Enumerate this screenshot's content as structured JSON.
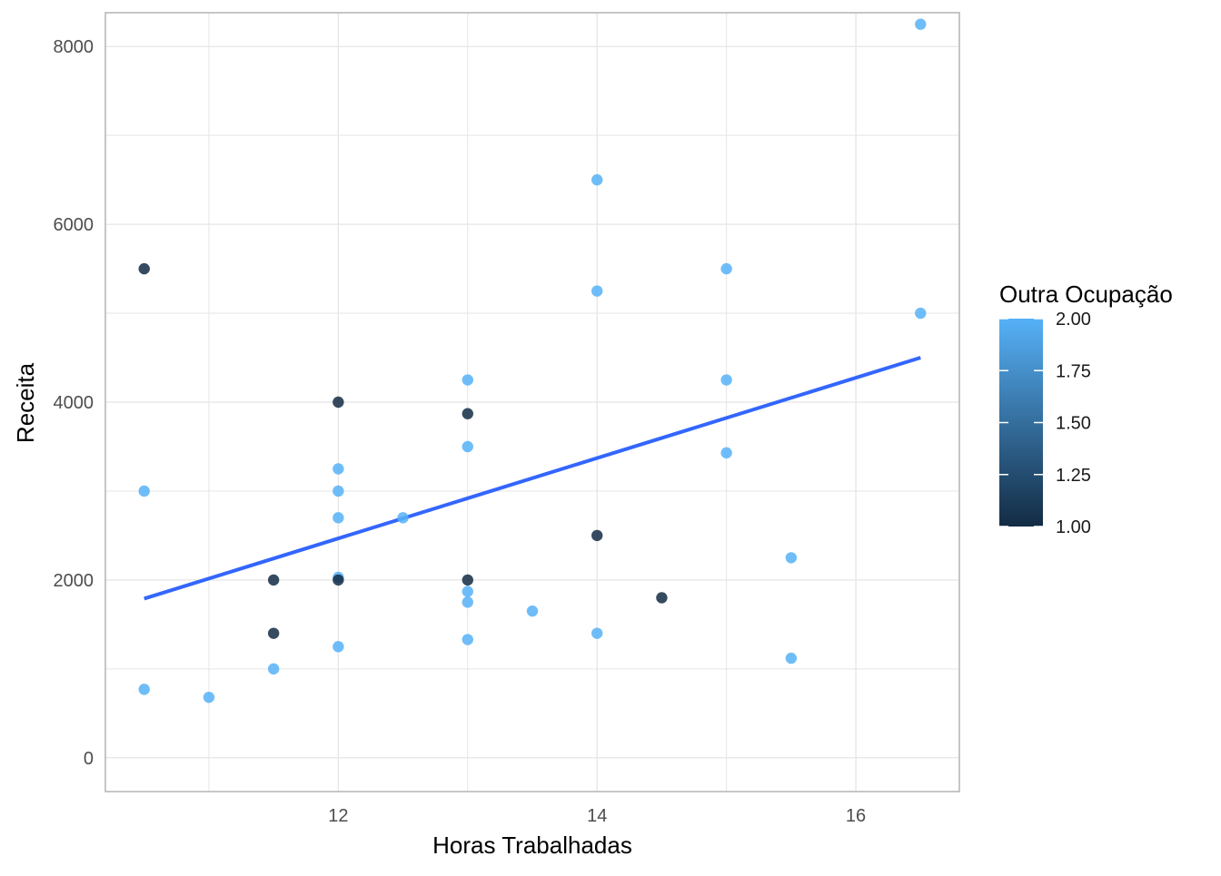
{
  "chart_data": {
    "type": "scatter",
    "title": "",
    "xlabel": "Horas Trabalhadas",
    "ylabel": "Receita",
    "xlim": [
      10.2,
      16.8
    ],
    "ylim": [
      -380,
      8380
    ],
    "x_ticks": [
      12,
      14,
      16
    ],
    "x_minor_ticks": [
      11,
      13,
      15
    ],
    "y_ticks": [
      0,
      2000,
      4000,
      6000,
      8000
    ],
    "y_minor_ticks": [
      1000,
      3000,
      5000,
      7000
    ],
    "grid": true,
    "color_scale": {
      "title": "Outra Ocupação",
      "min": 1.0,
      "max": 2.0,
      "low_color": "#132b43",
      "high_color": "#56b1f7",
      "tick_values": [
        1.0,
        1.25,
        1.5,
        1.75,
        2.0
      ],
      "tick_labels": [
        "1.00",
        "1.25",
        "1.50",
        "1.75",
        "2.00"
      ],
      "legend_position": "right"
    },
    "points": [
      {
        "x": 10.5,
        "y": 5500,
        "color_value": 1
      },
      {
        "x": 10.5,
        "y": 3000,
        "color_value": 2
      },
      {
        "x": 10.5,
        "y": 770,
        "color_value": 2
      },
      {
        "x": 11,
        "y": 680,
        "color_value": 2
      },
      {
        "x": 11.5,
        "y": 2000,
        "color_value": 1
      },
      {
        "x": 11.5,
        "y": 1400,
        "color_value": 1
      },
      {
        "x": 11.5,
        "y": 1000,
        "color_value": 2
      },
      {
        "x": 12,
        "y": 4000,
        "color_value": 1
      },
      {
        "x": 12,
        "y": 3250,
        "color_value": 2
      },
      {
        "x": 12,
        "y": 3000,
        "color_value": 2
      },
      {
        "x": 12,
        "y": 2700,
        "color_value": 2
      },
      {
        "x": 12,
        "y": 2030,
        "color_value": 2
      },
      {
        "x": 12,
        "y": 2000,
        "color_value": 1
      },
      {
        "x": 12,
        "y": 1250,
        "color_value": 2
      },
      {
        "x": 12.5,
        "y": 2700,
        "color_value": 2
      },
      {
        "x": 13,
        "y": 4250,
        "color_value": 2
      },
      {
        "x": 13,
        "y": 3870,
        "color_value": 1
      },
      {
        "x": 13,
        "y": 3500,
        "color_value": 2
      },
      {
        "x": 13,
        "y": 2000,
        "color_value": 1
      },
      {
        "x": 13,
        "y": 1870,
        "color_value": 2
      },
      {
        "x": 13,
        "y": 1750,
        "color_value": 2
      },
      {
        "x": 13,
        "y": 1330,
        "color_value": 2
      },
      {
        "x": 13.5,
        "y": 1650,
        "color_value": 2
      },
      {
        "x": 14,
        "y": 6500,
        "color_value": 2
      },
      {
        "x": 14,
        "y": 5250,
        "color_value": 2
      },
      {
        "x": 14,
        "y": 2500,
        "color_value": 1
      },
      {
        "x": 14,
        "y": 1400,
        "color_value": 2
      },
      {
        "x": 14.5,
        "y": 1800,
        "color_value": 1
      },
      {
        "x": 15,
        "y": 5500,
        "color_value": 2
      },
      {
        "x": 15,
        "y": 4250,
        "color_value": 2
      },
      {
        "x": 15,
        "y": 3430,
        "color_value": 2
      },
      {
        "x": 15.5,
        "y": 2250,
        "color_value": 2
      },
      {
        "x": 15.5,
        "y": 1120,
        "color_value": 2
      },
      {
        "x": 16.5,
        "y": 8250,
        "color_value": 2
      },
      {
        "x": 16.5,
        "y": 5000,
        "color_value": 2
      }
    ],
    "trend_line": {
      "type": "linear",
      "color": "#3366ff",
      "start": {
        "x": 10.5,
        "y": 1790
      },
      "end": {
        "x": 16.5,
        "y": 4500
      }
    },
    "style": {
      "panel_border_color": "#b3b3b3",
      "grid_color": "#e5e5e5",
      "point_opacity": 0.85
    }
  }
}
